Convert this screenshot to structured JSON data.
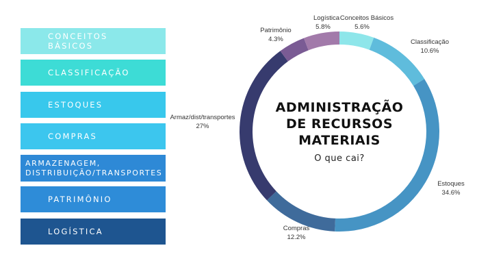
{
  "menu": {
    "items": [
      {
        "label": "CONCEITOS\nBÁSICOS",
        "color": "#8be8ea"
      },
      {
        "label": "CLASSIFICAÇÃO",
        "color": "#3ddcd6"
      },
      {
        "label": "ESTOQUES",
        "color": "#38c8ec"
      },
      {
        "label": "COMPRAS",
        "color": "#3cc6ee"
      },
      {
        "label": "ARMAZENAGEM,\nDISTRIBUIÇÃO/TRANSPORTES",
        "color": "#2e89d6"
      },
      {
        "label": "PATRIMÔNIO",
        "color": "#2e8cd8"
      },
      {
        "label": "LOGÍSTICA",
        "color": "#1e5590"
      }
    ]
  },
  "center": {
    "title_lines": [
      "ADMINISTRAÇÃO",
      "DE RECURSOS",
      "MATERIAIS"
    ],
    "subtitle": "O que cai?"
  },
  "chart_data": {
    "type": "pie",
    "style": "donut",
    "categories": [
      "Conceitos Básicos",
      "Classificação",
      "Estoques",
      "Compras",
      "Armaz/dist/transportes",
      "Patrimônio",
      "Logística"
    ],
    "values": [
      5.6,
      10.6,
      34.6,
      12.2,
      27,
      4.3,
      5.8
    ],
    "labels": [
      "5.6%",
      "10.6%",
      "34.6%",
      "12.2%",
      "27%",
      "4.3%",
      "5.8%"
    ],
    "colors": [
      "#8ee6ea",
      "#5fbcdc",
      "#4694c4",
      "#3f6b9b",
      "#373b6e",
      "#7a5b94",
      "#a27aaa"
    ],
    "legend": "none"
  }
}
